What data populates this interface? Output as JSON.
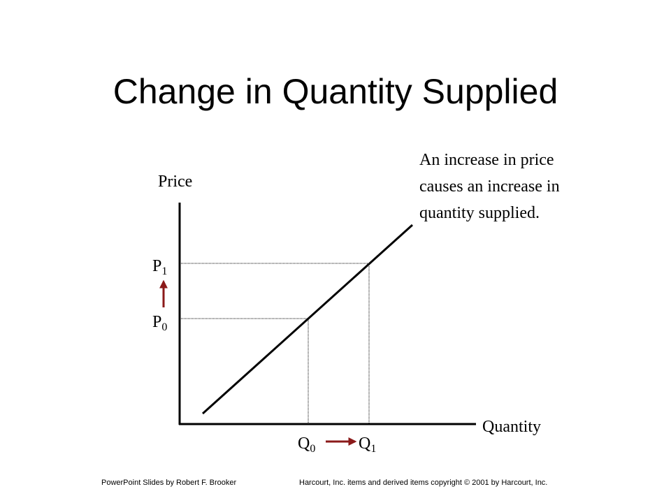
{
  "title": "Change in Quantity Supplied",
  "axes": {
    "y_label": "Price",
    "x_label": "Quantity"
  },
  "annotation": [
    "An increase in price",
    "causes an increase in",
    "quantity supplied."
  ],
  "prices": [
    {
      "letter": "P",
      "sub": "0"
    },
    {
      "letter": "P",
      "sub": "1"
    }
  ],
  "quantities": [
    {
      "letter": "Q",
      "sub": "0"
    },
    {
      "letter": "Q",
      "sub": "1"
    }
  ],
  "footer": {
    "left": "PowerPoint Slides by Robert F. Brooker",
    "right": "Harcourt, Inc. items and derived items copyright © 2001 by Harcourt, Inc."
  }
}
